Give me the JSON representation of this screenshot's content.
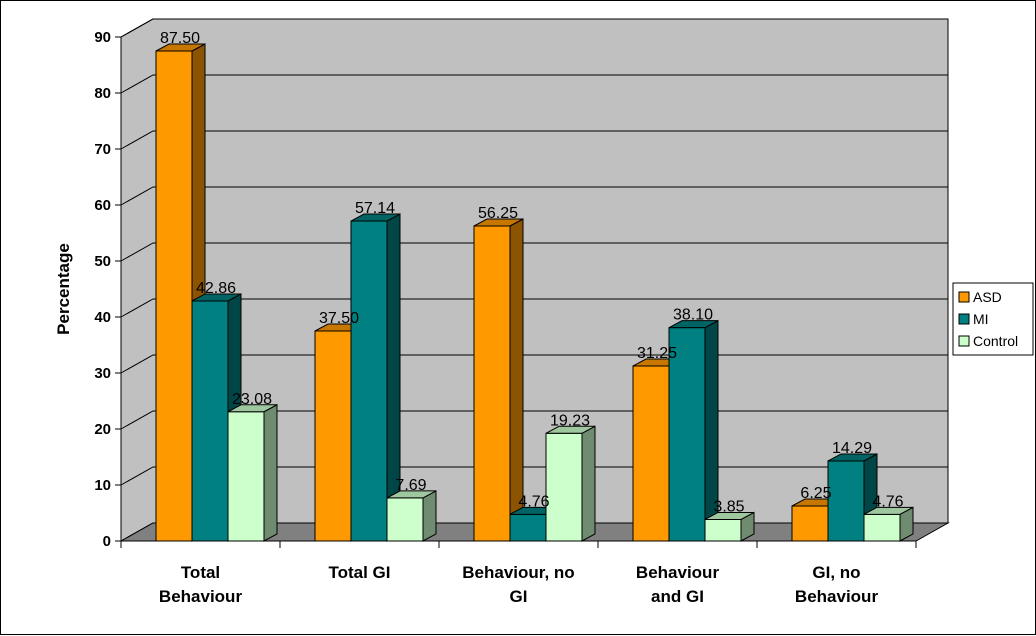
{
  "chart_data": {
    "type": "bar",
    "title": "",
    "xlabel": "",
    "ylabel": "Percentage",
    "ylim": [
      0,
      90
    ],
    "yticks": [
      0,
      10,
      20,
      30,
      40,
      50,
      60,
      70,
      80,
      90
    ],
    "grid": true,
    "legend_position": "right",
    "categories": [
      [
        "Total",
        "Behaviour"
      ],
      [
        "Total GI"
      ],
      [
        "Behaviour, no",
        "GI"
      ],
      [
        "Behaviour",
        "and GI"
      ],
      [
        "GI, no",
        "Behaviour"
      ]
    ],
    "series": [
      {
        "name": "ASD",
        "color": "#FF9900",
        "values": [
          87.5,
          37.5,
          56.25,
          31.25,
          6.25
        ],
        "labels": [
          "87.50",
          "37.50",
          "56.25",
          "31.25",
          "6.25"
        ]
      },
      {
        "name": "MI",
        "color": "#008080",
        "values": [
          42.86,
          57.14,
          4.76,
          38.1,
          14.29
        ],
        "labels": [
          "42.86",
          "57.14",
          "4.76",
          "38.10",
          "14.29"
        ]
      },
      {
        "name": "Control",
        "color": "#CCFFCC",
        "values": [
          23.08,
          7.69,
          19.23,
          3.85,
          4.76
        ],
        "labels": [
          "23.08",
          "7.69",
          "19.23",
          "3.85",
          "4.76"
        ]
      }
    ],
    "colors": {
      "wall": "#C0C0C0",
      "floor": "#808080"
    }
  }
}
